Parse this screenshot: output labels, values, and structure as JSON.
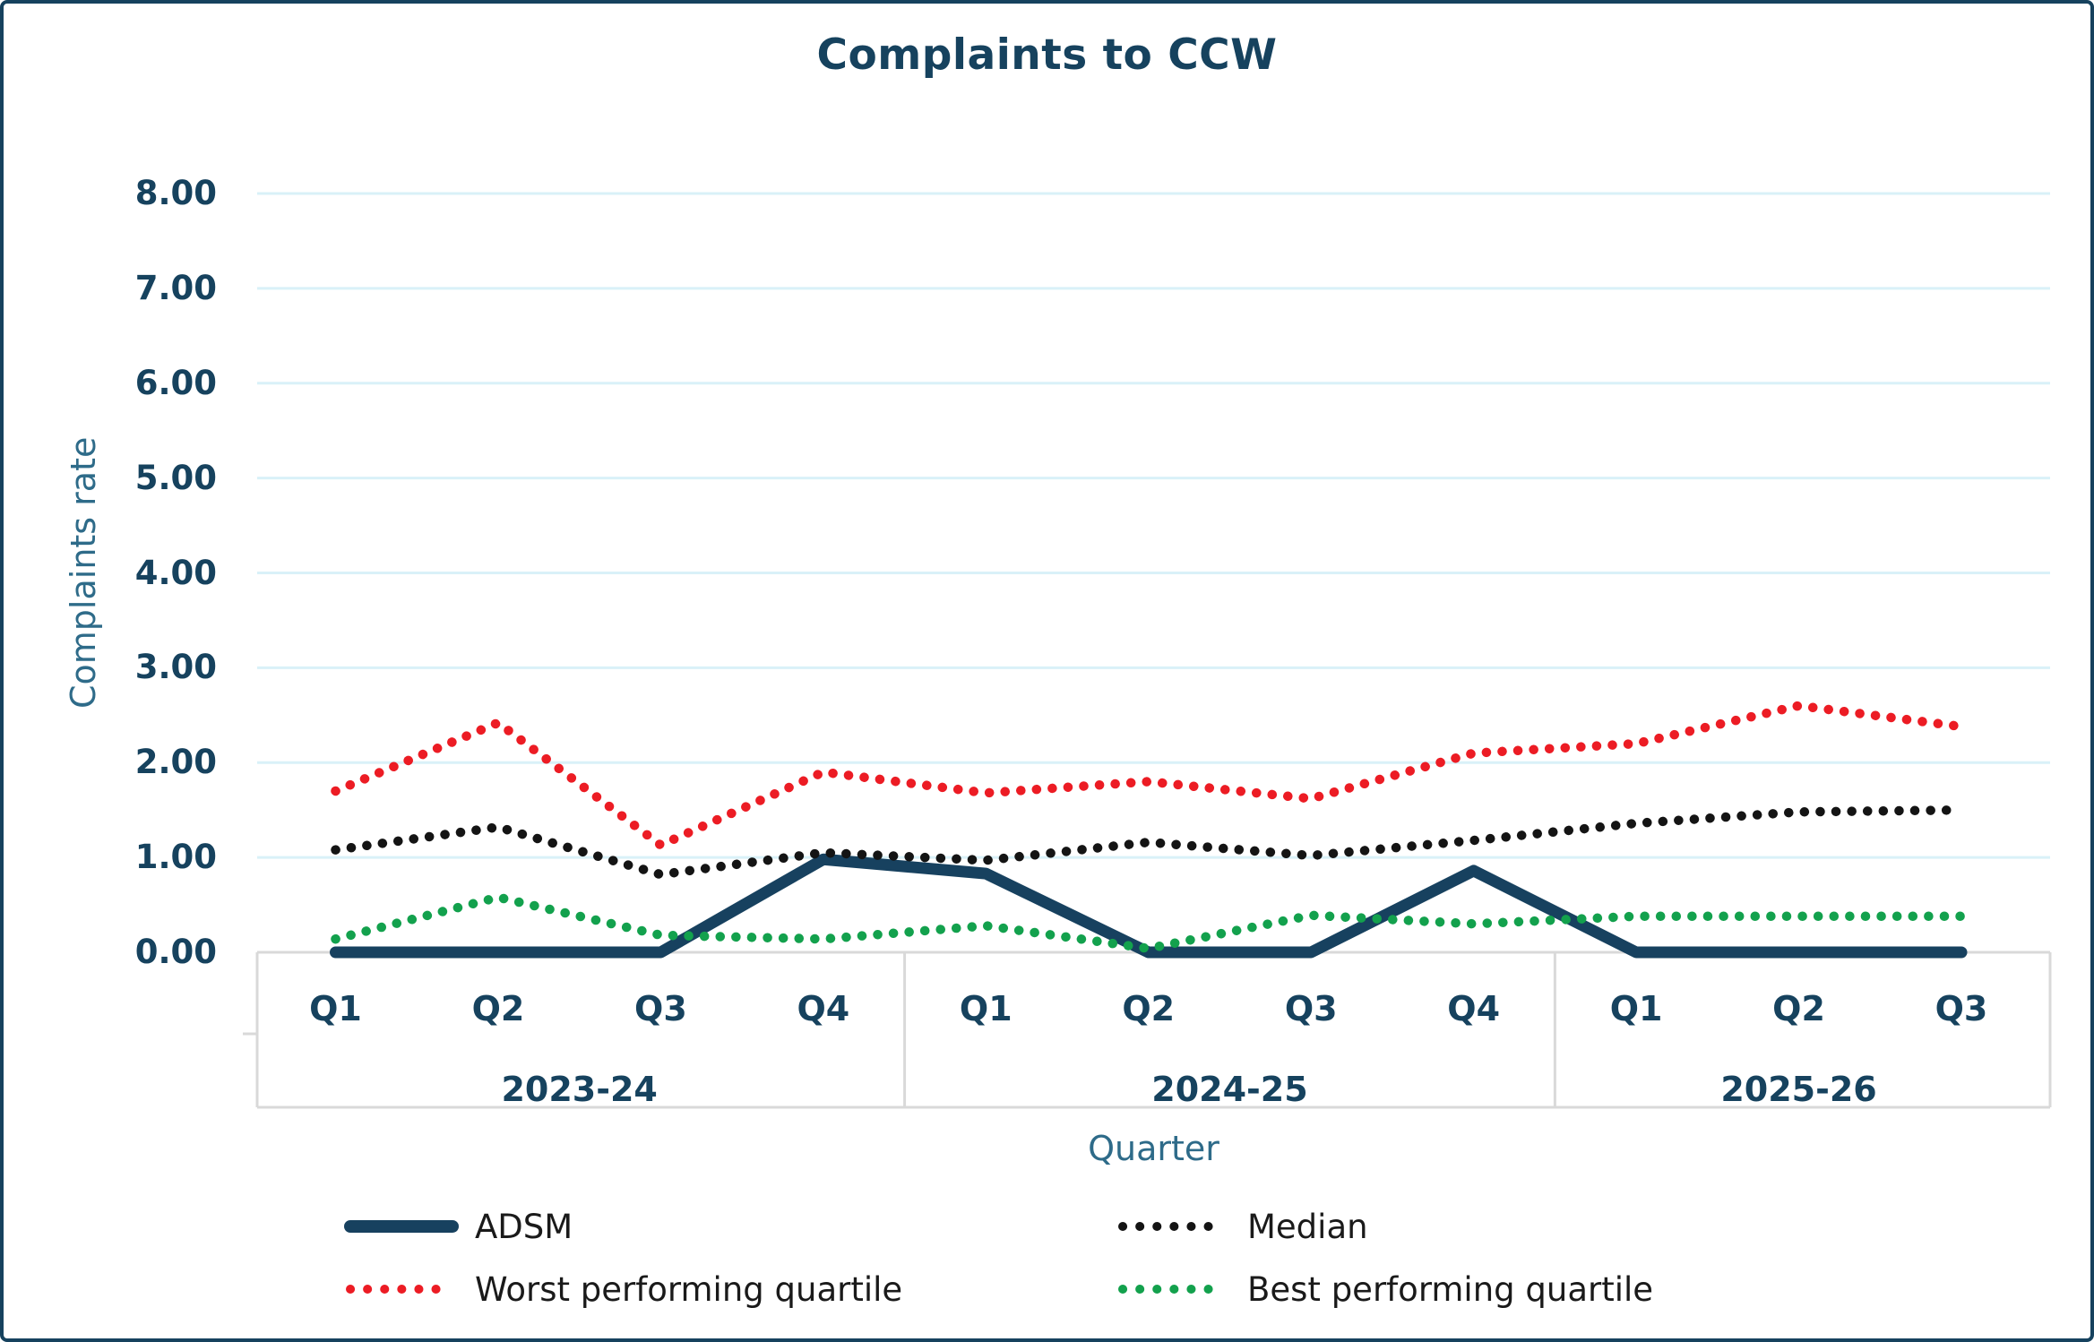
{
  "title": "Complaints to CCW",
  "colors": {
    "title_text": "#16425e",
    "tick_text": "#16425e",
    "axis_title_text": "#2e6b89",
    "gridline": "#d9f1f8",
    "axis_line": "#d9d9d9",
    "legend_text": "#1a1a1a",
    "adsm_line": "#17415f",
    "median_line": "#141414",
    "worst_quartile_line": "#ec1c24",
    "best_quartile_line": "#13a14d"
  },
  "y_axis": {
    "title": "Complaints rate",
    "ticks": [
      "8.00",
      "7.00",
      "6.00",
      "5.00",
      "4.00",
      "3.00",
      "2.00",
      "1.00",
      "0.00"
    ]
  },
  "x_axis": {
    "title": "Quarter",
    "groups": [
      {
        "label": "2023-24",
        "quarters": [
          "Q1",
          "Q2",
          "Q3",
          "Q4"
        ]
      },
      {
        "label": "2024-25",
        "quarters": [
          "Q1",
          "Q2",
          "Q3",
          "Q4"
        ]
      },
      {
        "label": "2025-26",
        "quarters": [
          "Q1",
          "Q2",
          "Q3"
        ]
      }
    ]
  },
  "chart_data": {
    "type": "line",
    "title": "Complaints to CCW",
    "xlabel": "Quarter",
    "ylabel": "Complaints rate",
    "ylim": [
      0,
      8
    ],
    "grid": true,
    "legend_position": "bottom",
    "categories": [
      "2023-24 Q1",
      "2023-24 Q2",
      "2023-24 Q3",
      "2023-24 Q4",
      "2024-25 Q1",
      "2024-25 Q2",
      "2024-25 Q3",
      "2024-25 Q4",
      "2025-26 Q1",
      "2025-26 Q2",
      "2025-26 Q3"
    ],
    "series": [
      {
        "name": "ADSM",
        "style": "solid",
        "color": "#17415f",
        "values": [
          0.0,
          0.0,
          0.0,
          0.98,
          0.83,
          0.0,
          0.0,
          0.86,
          0.0,
          0.0,
          0.0
        ]
      },
      {
        "name": "Median",
        "style": "dotted",
        "color": "#141414",
        "values": [
          1.08,
          1.32,
          0.82,
          1.05,
          0.97,
          1.16,
          1.02,
          1.18,
          1.36,
          1.48,
          1.5
        ]
      },
      {
        "name": "Worst performing quartile",
        "style": "dotted",
        "color": "#ec1c24",
        "values": [
          1.7,
          2.42,
          1.13,
          1.9,
          1.68,
          1.8,
          1.62,
          2.1,
          2.2,
          2.6,
          2.38
        ]
      },
      {
        "name": "Best performing quartile",
        "style": "dotted",
        "color": "#13a14d",
        "values": [
          0.14,
          0.58,
          0.18,
          0.14,
          0.28,
          0.04,
          0.39,
          0.3,
          0.38,
          0.38,
          0.38
        ]
      }
    ]
  }
}
